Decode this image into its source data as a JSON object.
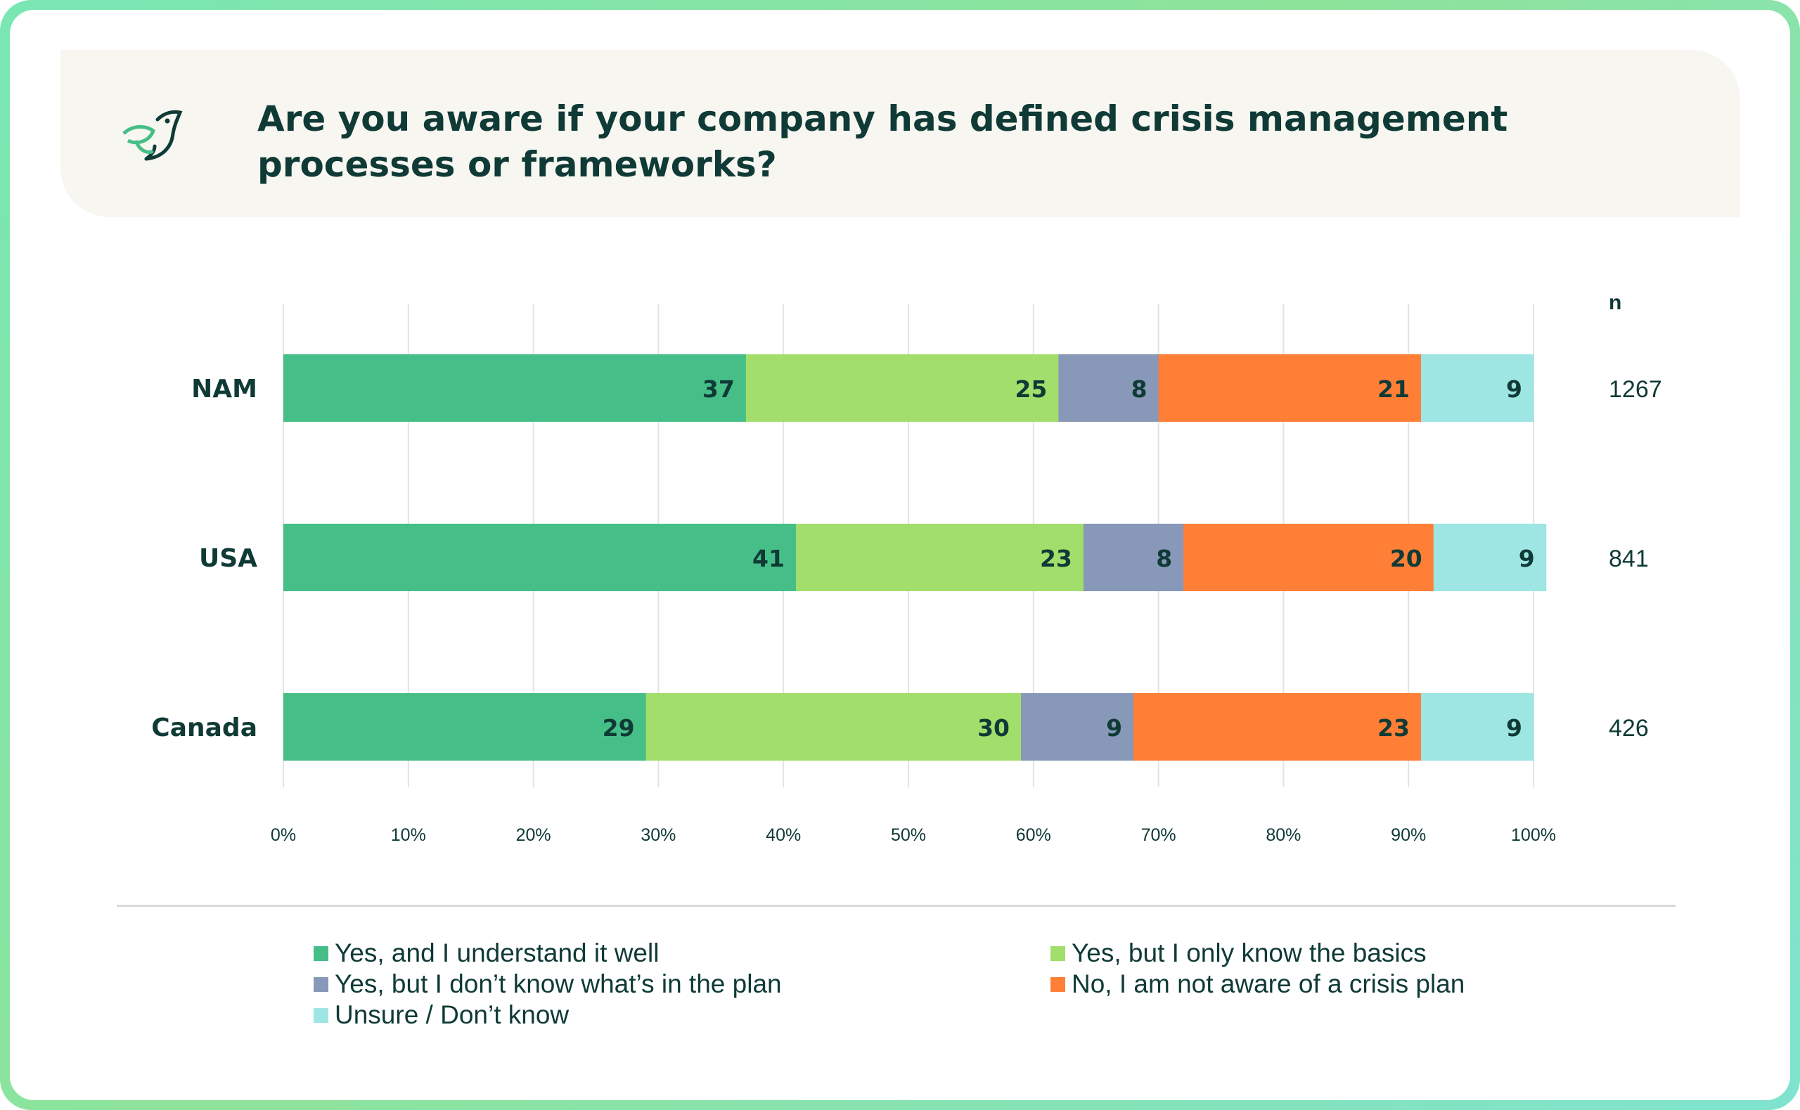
{
  "title": "Are you aware if your company has defined crisis management processes or frameworks?",
  "icon": "bird-logo-icon",
  "chart_data": {
    "type": "bar",
    "orientation": "horizontal",
    "stacked": true,
    "title": "Are you aware if your company has defined crisis management processes or frameworks?",
    "categories": [
      "NAM",
      "USA",
      "Canada"
    ],
    "n_header": "n",
    "n_values": [
      "1267",
      "841",
      "426"
    ],
    "xlim": [
      0,
      100
    ],
    "x_ticks": [
      "0%",
      "10%",
      "20%",
      "30%",
      "40%",
      "50%",
      "60%",
      "70%",
      "80%",
      "90%",
      "100%"
    ],
    "grid": true,
    "legend_position": "bottom",
    "series": [
      {
        "name": "Yes, and I understand it well",
        "color": "#45bf87",
        "values": [
          37,
          41,
          29
        ],
        "labels": [
          "37",
          "41",
          "29"
        ]
      },
      {
        "name": "Yes, but I only know the basics",
        "color": "#a2de6c",
        "values": [
          25,
          23,
          30
        ],
        "labels": [
          "25",
          "23",
          "30"
        ]
      },
      {
        "name": "Yes, but I don’t know what’s in the plan",
        "color": "#8798b8",
        "values": [
          8,
          8,
          9
        ],
        "labels": [
          "8",
          "8",
          "9"
        ]
      },
      {
        "name": "No, I am not aware of a crisis plan",
        "color": "#ff7f36",
        "values": [
          21,
          20,
          23
        ],
        "labels": [
          "21",
          "20",
          "23"
        ]
      },
      {
        "name": "Unsure / Don’t know",
        "color": "#9de6e4",
        "values": [
          9,
          9,
          9
        ],
        "labels": [
          "9",
          "9",
          "9"
        ]
      }
    ]
  }
}
